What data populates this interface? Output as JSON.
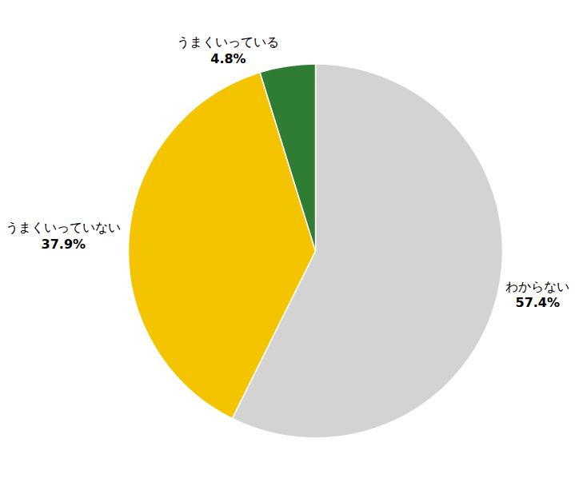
{
  "chart_data": {
    "type": "pie",
    "categories": [
      "わからない",
      "うまくいっていない",
      "うまくいっている"
    ],
    "values": [
      57.4,
      37.9,
      4.8
    ],
    "value_labels": [
      "57.4%",
      "37.9%",
      "4.8%"
    ],
    "colors": [
      "#d3d3d3",
      "#f5c400",
      "#2e7d32"
    ],
    "data_labels": true,
    "legend": false
  }
}
